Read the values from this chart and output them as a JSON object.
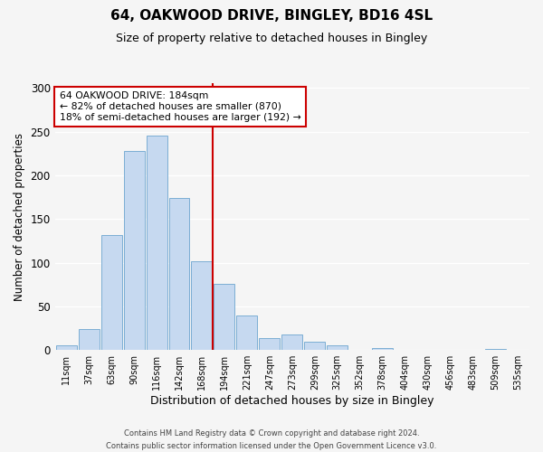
{
  "title": "64, OAKWOOD DRIVE, BINGLEY, BD16 4SL",
  "subtitle": "Size of property relative to detached houses in Bingley",
  "xlabel": "Distribution of detached houses by size in Bingley",
  "ylabel": "Number of detached properties",
  "bar_labels": [
    "11sqm",
    "37sqm",
    "63sqm",
    "90sqm",
    "116sqm",
    "142sqm",
    "168sqm",
    "194sqm",
    "221sqm",
    "247sqm",
    "273sqm",
    "299sqm",
    "325sqm",
    "352sqm",
    "378sqm",
    "404sqm",
    "430sqm",
    "456sqm",
    "483sqm",
    "509sqm",
    "535sqm"
  ],
  "bar_values": [
    5,
    24,
    132,
    228,
    245,
    174,
    102,
    76,
    40,
    14,
    18,
    10,
    5,
    0,
    2,
    0,
    0,
    0,
    0,
    1,
    0
  ],
  "bar_color": "#c6d9f0",
  "bar_edgecolor": "#7BAED4",
  "vline_color": "#cc0000",
  "annotation_text": "64 OAKWOOD DRIVE: 184sqm\n← 82% of detached houses are smaller (870)\n18% of semi-detached houses are larger (192) →",
  "annotation_box_edgecolor": "#cc0000",
  "ylim": [
    0,
    305
  ],
  "yticks": [
    0,
    50,
    100,
    150,
    200,
    250,
    300
  ],
  "footer1": "Contains HM Land Registry data © Crown copyright and database right 2024.",
  "footer2": "Contains public sector information licensed under the Open Government Licence v3.0.",
  "bg_color": "#f5f5f5"
}
